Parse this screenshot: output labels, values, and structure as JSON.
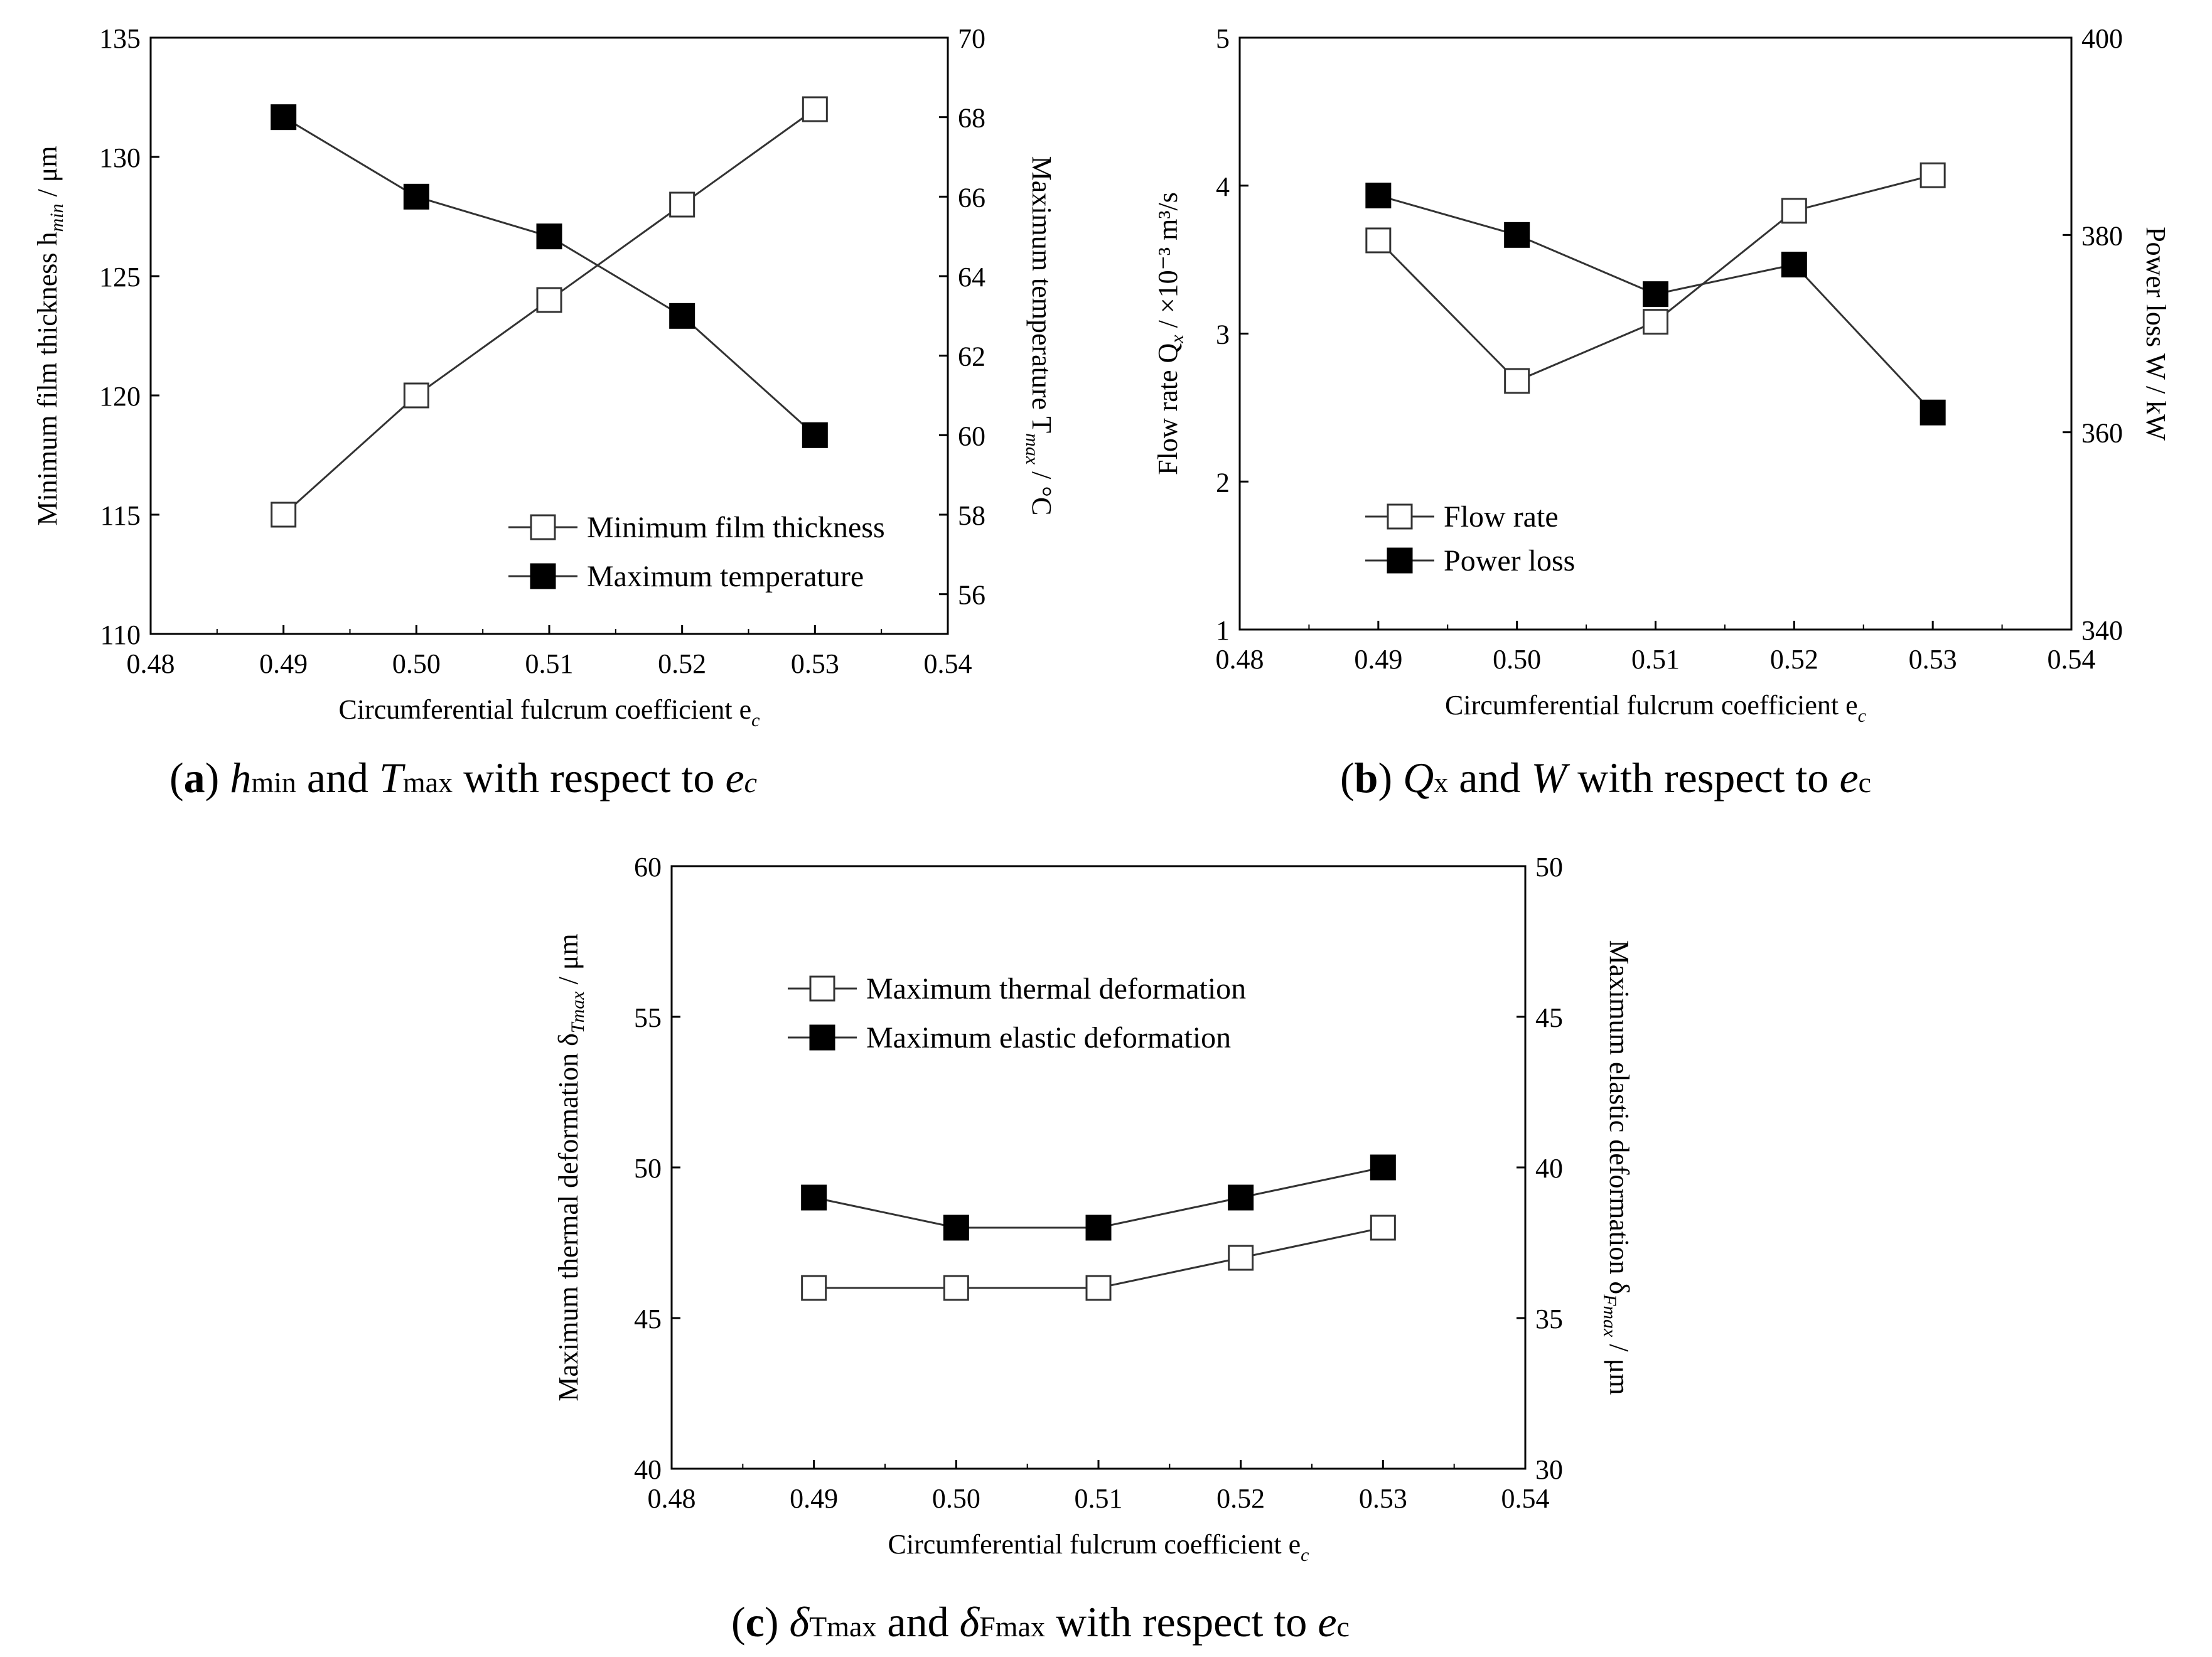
{
  "chart_data": [
    {
      "id": "a",
      "type": "line",
      "x": [
        0.49,
        0.5,
        0.51,
        0.52,
        0.53
      ],
      "xlim": [
        0.48,
        0.54
      ],
      "x_ticks": [
        "0.48",
        "0.49",
        "0.50",
        "0.51",
        "0.52",
        "0.53",
        "0.54"
      ],
      "xlabel": "Circumferential fulcrum coefficient e",
      "xlabel_sub": "c",
      "left_axis": {
        "ylim": [
          110,
          135
        ],
        "ticks": [
          "110",
          "115",
          "120",
          "125",
          "130",
          "135"
        ],
        "label_main": "Minimum film thickness h",
        "label_sub": "min",
        "label_unit": " /  μm"
      },
      "right_axis": {
        "ylim": [
          55,
          70
        ],
        "ticks": [
          "56",
          "58",
          "60",
          "62",
          "64",
          "66",
          "68",
          "70"
        ],
        "label_main": "Maximum temperature T",
        "label_sub": "max",
        "label_unit": " /  °C"
      },
      "series": [
        {
          "name": "Minimum film thickness",
          "axis": "left",
          "marker": "open-square",
          "values": [
            115,
            120,
            124,
            128,
            132
          ]
        },
        {
          "name": "Maximum temperature",
          "axis": "right",
          "marker": "filled-square",
          "values": [
            68,
            66,
            65,
            63,
            60
          ]
        }
      ],
      "legend_position": "bottom-right",
      "caption": {
        "letter": "a",
        "part1": "h",
        "part1_sub": "min",
        "mid": " and ",
        "part2": "T",
        "part2_sub": "max",
        "tail": " with respect to ",
        "part3": "e",
        "part3_sub": "c"
      }
    },
    {
      "id": "b",
      "type": "line",
      "x": [
        0.49,
        0.5,
        0.51,
        0.52,
        0.53
      ],
      "xlim": [
        0.48,
        0.54
      ],
      "x_ticks": [
        "0.48",
        "0.49",
        "0.50",
        "0.51",
        "0.52",
        "0.53",
        "0.54"
      ],
      "xlabel": "Circumferential fulcrum coefficient e",
      "xlabel_sub": "c",
      "left_axis": {
        "ylim": [
          1,
          5
        ],
        "ticks": [
          "1",
          "2",
          "3",
          "4",
          "5"
        ],
        "label_main": "Flow rate Q",
        "label_sub": "x",
        "label_unit": " / ×10⁻³ m³/s"
      },
      "right_axis": {
        "ylim": [
          340,
          400
        ],
        "ticks": [
          "340",
          "360",
          "380",
          "400"
        ],
        "label_main": "Power loss W",
        "label_sub": "",
        "label_unit": " / kW"
      },
      "series": [
        {
          "name": "Flow rate",
          "axis": "left",
          "marker": "open-square",
          "values": [
            3.63,
            2.68,
            3.08,
            3.83,
            4.07
          ]
        },
        {
          "name": "Power loss",
          "axis": "right",
          "marker": "filled-square",
          "values": [
            384,
            380,
            374,
            377,
            362
          ]
        }
      ],
      "legend_position": "bottom-left",
      "caption": {
        "letter": "b",
        "part1": "Q",
        "part1_sub": "x",
        "mid": " and ",
        "part2": "W",
        "part2_sub": "",
        "tail": " with respect to ",
        "part3": "e",
        "part3_sub": "c"
      }
    },
    {
      "id": "c",
      "type": "line",
      "x": [
        0.49,
        0.5,
        0.51,
        0.52,
        0.53
      ],
      "xlim": [
        0.48,
        0.54
      ],
      "x_ticks": [
        "0.48",
        "0.49",
        "0.50",
        "0.51",
        "0.52",
        "0.53",
        "0.54"
      ],
      "xlabel": "Circumferential fulcrum coefficient e",
      "xlabel_sub": "c",
      "left_axis": {
        "ylim": [
          40,
          60
        ],
        "ticks": [
          "40",
          "45",
          "50",
          "55",
          "60"
        ],
        "label_main": "Maximum thermal deformation δ",
        "label_sub": "Tmax",
        "label_unit": " /  μm"
      },
      "right_axis": {
        "ylim": [
          30,
          50
        ],
        "ticks": [
          "30",
          "35",
          "40",
          "45",
          "50"
        ],
        "label_main": "Maximum elastic deformation δ",
        "label_sub": "Fmax",
        "label_unit": " /  μm"
      },
      "series": [
        {
          "name": "Maximum thermal deformation",
          "axis": "left",
          "marker": "open-square",
          "values": [
            46,
            46,
            46,
            47,
            48
          ]
        },
        {
          "name": "Maximum elastic deformation",
          "axis": "right",
          "marker": "filled-square",
          "values": [
            39,
            38,
            38,
            39,
            40
          ]
        }
      ],
      "legend_position": "top-left",
      "caption": {
        "letter": "c",
        "part1": "δ",
        "part1_sub": "Tmax",
        "mid": " and ",
        "part2": "δ",
        "part2_sub": "Fmax",
        "tail": " with respect to ",
        "part3": "e",
        "part3_sub": "c"
      }
    }
  ]
}
